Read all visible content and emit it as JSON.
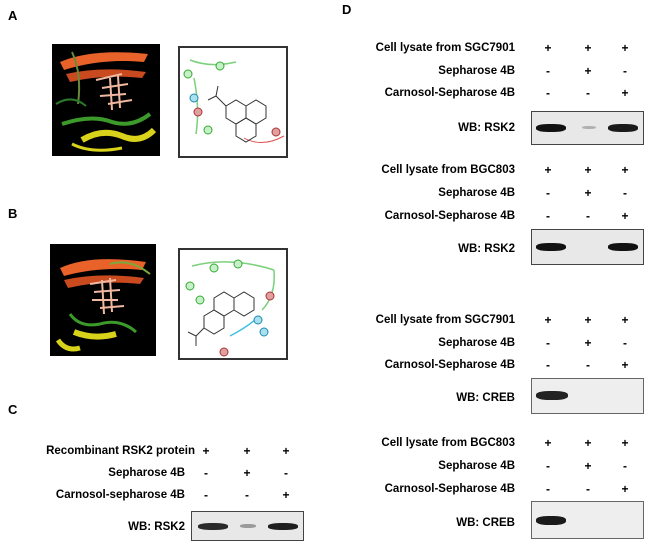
{
  "panels": {
    "A": "A",
    "B": "B",
    "C": "C",
    "D": "D"
  },
  "panel_c": {
    "rows": [
      {
        "label": "Recombinant RSK2  protein",
        "signs": [
          "+",
          "+",
          "+"
        ]
      },
      {
        "label": "Sepharose 4B",
        "signs": [
          "-",
          "+",
          "-"
        ]
      },
      {
        "label": "Carnosol-sepharose 4B",
        "signs": [
          "-",
          "-",
          "+"
        ]
      }
    ],
    "wb_label": "WB: RSK2"
  },
  "panel_d": {
    "blocks": [
      {
        "rows": [
          {
            "label": "Cell lysate from SGC7901",
            "signs": [
              "+",
              "+",
              "+"
            ]
          },
          {
            "label": "Sepharose 4B",
            "signs": [
              "-",
              "+",
              "-"
            ]
          },
          {
            "label": "Carnosol-Sepharose 4B",
            "signs": [
              "-",
              "-",
              "+"
            ]
          }
        ],
        "wb_label": "WB: RSK2"
      },
      {
        "rows": [
          {
            "label": "Cell lysate from BGC803",
            "signs": [
              "+",
              "+",
              "+"
            ]
          },
          {
            "label": "Sepharose 4B",
            "signs": [
              "-",
              "+",
              "-"
            ]
          },
          {
            "label": "Carnosol-Sepharose 4B",
            "signs": [
              "-",
              "-",
              "+"
            ]
          }
        ],
        "wb_label": "WB: RSK2"
      },
      {
        "rows": [
          {
            "label": "Cell lysate from SGC7901",
            "signs": [
              "+",
              "+",
              "+"
            ]
          },
          {
            "label": "Sepharose 4B",
            "signs": [
              "-",
              "+",
              "-"
            ]
          },
          {
            "label": "Carnosol-Sepharose 4B",
            "signs": [
              "-",
              "-",
              "+"
            ]
          }
        ],
        "wb_label": "WB: CREB"
      },
      {
        "rows": [
          {
            "label": "Cell lysate from BGC803",
            "signs": [
              "+",
              "+",
              "+"
            ]
          },
          {
            "label": "Sepharose 4B",
            "signs": [
              "-",
              "+",
              "-"
            ]
          },
          {
            "label": "Carnosol-Sepharose 4B",
            "signs": [
              "-",
              "-",
              "+"
            ]
          }
        ],
        "wb_label": "WB: CREB"
      }
    ]
  },
  "colors": {
    "ribbon_orange": "#e8622a",
    "ribbon_yellow": "#d8d21a",
    "ribbon_green": "#3c9a2a",
    "ligand": "#f0b8a0"
  }
}
